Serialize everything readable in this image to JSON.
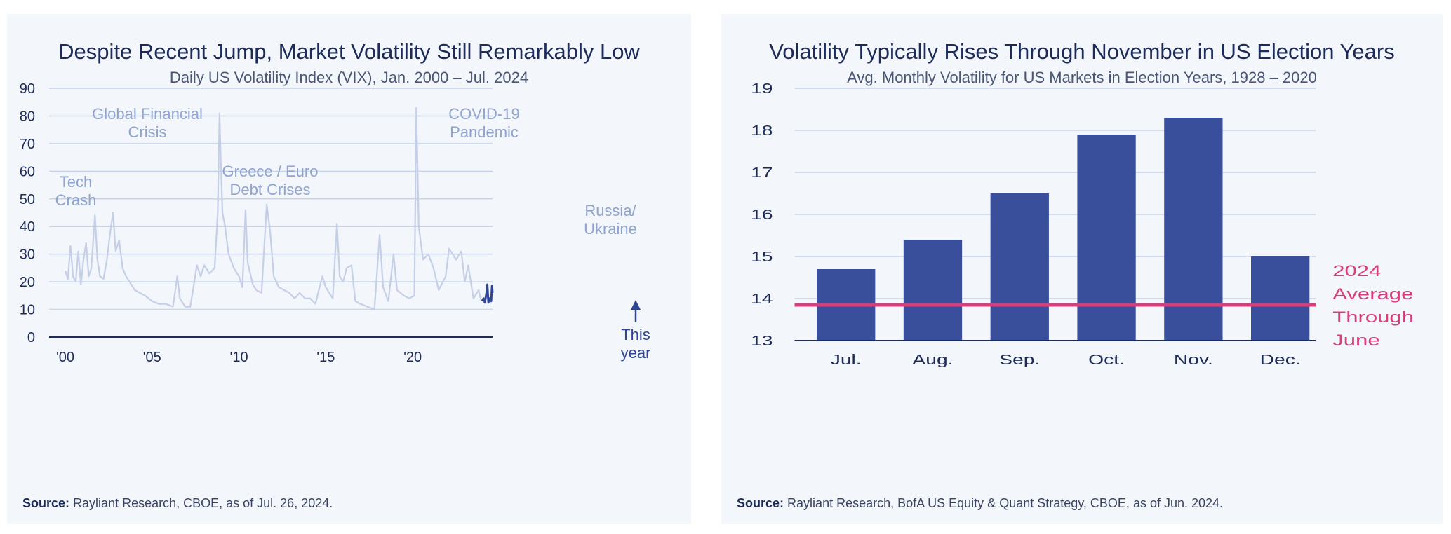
{
  "left": {
    "title": "Despite Recent Jump, Market Volatility Still Remarkably Low",
    "subtitle": "Daily US Volatility Index (VIX), Jan. 2000 – Jul. 2024",
    "source_label": "Source:",
    "source_text": "Rayliant Research, CBOE, as of Jul. 26, 2024.",
    "colors": {
      "history": "#c5d0e8",
      "recent": "#2e4596",
      "grid": "#c7d4ea",
      "axis": "#1c2b5a"
    },
    "chart_data": {
      "type": "line",
      "ylim": [
        0,
        90
      ],
      "yticks": [
        0,
        10,
        20,
        30,
        40,
        50,
        60,
        70,
        80,
        90
      ],
      "xlim": [
        2000,
        2024.6
      ],
      "xticks": [
        {
          "value": 2000,
          "label": "'00"
        },
        {
          "value": 2005,
          "label": "'05"
        },
        {
          "value": 2010,
          "label": "'10"
        },
        {
          "value": 2015,
          "label": "'15"
        },
        {
          "value": 2020,
          "label": "'20"
        }
      ],
      "series": [
        {
          "points": [
            [
              2000,
              24
            ],
            [
              2000.15,
              21
            ],
            [
              2000.3,
              33
            ],
            [
              2000.45,
              22
            ],
            [
              2000.6,
              20
            ],
            [
              2000.75,
              31
            ],
            [
              2000.9,
              19
            ],
            [
              2001.05,
              28
            ],
            [
              2001.2,
              34
            ],
            [
              2001.35,
              22
            ],
            [
              2001.5,
              25
            ],
            [
              2001.71,
              44
            ],
            [
              2001.85,
              28
            ],
            [
              2002.0,
              22
            ],
            [
              2002.2,
              21
            ],
            [
              2002.4,
              28
            ],
            [
              2002.55,
              36
            ],
            [
              2002.75,
              45
            ],
            [
              2002.9,
              31
            ],
            [
              2003.1,
              35
            ],
            [
              2003.3,
              25
            ],
            [
              2003.5,
              22
            ],
            [
              2003.7,
              20
            ],
            [
              2004.0,
              17
            ],
            [
              2004.3,
              16
            ],
            [
              2004.6,
              15
            ],
            [
              2005.0,
              13
            ],
            [
              2005.4,
              12
            ],
            [
              2005.8,
              12
            ],
            [
              2006.2,
              11
            ],
            [
              2006.45,
              22
            ],
            [
              2006.6,
              14
            ],
            [
              2006.9,
              11
            ],
            [
              2007.2,
              11
            ],
            [
              2007.58,
              26
            ],
            [
              2007.8,
              22
            ],
            [
              2008.0,
              26
            ],
            [
              2008.3,
              23
            ],
            [
              2008.6,
              25
            ],
            [
              2008.78,
              45
            ],
            [
              2008.88,
              81
            ],
            [
              2008.95,
              65
            ],
            [
              2009.05,
              45
            ],
            [
              2009.2,
              40
            ],
            [
              2009.4,
              30
            ],
            [
              2009.7,
              25
            ],
            [
              2010.0,
              22
            ],
            [
              2010.2,
              18
            ],
            [
              2010.38,
              46
            ],
            [
              2010.5,
              27
            ],
            [
              2010.8,
              19
            ],
            [
              2011.0,
              17
            ],
            [
              2011.3,
              16
            ],
            [
              2011.6,
              48
            ],
            [
              2011.8,
              38
            ],
            [
              2012.0,
              22
            ],
            [
              2012.3,
              18
            ],
            [
              2012.6,
              17
            ],
            [
              2012.9,
              16
            ],
            [
              2013.2,
              14
            ],
            [
              2013.5,
              16
            ],
            [
              2013.8,
              14
            ],
            [
              2014.1,
              14
            ],
            [
              2014.4,
              12
            ],
            [
              2014.8,
              22
            ],
            [
              2015.0,
              18
            ],
            [
              2015.4,
              14
            ],
            [
              2015.64,
              41
            ],
            [
              2015.8,
              22
            ],
            [
              2016.0,
              20
            ],
            [
              2016.2,
              25
            ],
            [
              2016.48,
              26
            ],
            [
              2016.7,
              13
            ],
            [
              2017.0,
              12
            ],
            [
              2017.4,
              11
            ],
            [
              2017.8,
              10
            ],
            [
              2018.1,
              37
            ],
            [
              2018.3,
              18
            ],
            [
              2018.6,
              13
            ],
            [
              2018.9,
              30
            ],
            [
              2019.1,
              17
            ],
            [
              2019.5,
              15
            ],
            [
              2019.8,
              14
            ],
            [
              2020.1,
              15
            ],
            [
              2020.21,
              83
            ],
            [
              2020.35,
              40
            ],
            [
              2020.6,
              28
            ],
            [
              2020.9,
              30
            ],
            [
              2021.2,
              25
            ],
            [
              2021.5,
              17
            ],
            [
              2021.9,
              22
            ],
            [
              2022.1,
              32
            ],
            [
              2022.3,
              30
            ],
            [
              2022.5,
              28
            ],
            [
              2022.8,
              31
            ],
            [
              2023.0,
              20
            ],
            [
              2023.2,
              26
            ],
            [
              2023.5,
              14
            ],
            [
              2023.8,
              17
            ],
            [
              2023.95,
              13
            ]
          ]
        },
        {
          "name": "This year",
          "points": [
            [
              2024.0,
              13
            ],
            [
              2024.08,
              14
            ],
            [
              2024.16,
              12.5
            ],
            [
              2024.25,
              16
            ],
            [
              2024.3,
              19
            ],
            [
              2024.36,
              12.5
            ],
            [
              2024.44,
              14
            ],
            [
              2024.52,
              13
            ],
            [
              2024.57,
              18.5
            ],
            [
              2024.6,
              16
            ]
          ]
        }
      ],
      "annotations": [
        {
          "lines": [
            "Tech",
            "Crash"
          ]
        },
        {
          "lines": [
            "Global Financial",
            "Crisis"
          ]
        },
        {
          "lines": [
            "Greece / Euro",
            "Debt Crises"
          ]
        },
        {
          "lines": [
            "COVID-19",
            "Pandemic"
          ]
        },
        {
          "lines": [
            "Russia/",
            "Ukraine"
          ]
        },
        {
          "lines": [
            "This",
            "year"
          ]
        }
      ]
    }
  },
  "right": {
    "title": "Volatility Typically Rises Through November in US Election Years",
    "subtitle": "Avg. Monthly Volatility for US Markets in Election Years, 1928 – 2020",
    "source_label": "Source:",
    "source_text": "Rayliant Research, BofA US Equity & Quant Strategy, CBOE, as of Jun. 2024.",
    "colors": {
      "bar": "#3a4f9c",
      "reference": "#d63f7c",
      "grid": "#c7d4ea",
      "axis": "#1c2b5a"
    },
    "chart_data": {
      "type": "bar",
      "categories": [
        "Jul.",
        "Aug.",
        "Sep.",
        "Oct.",
        "Nov.",
        "Dec."
      ],
      "values": [
        14.7,
        15.4,
        16.5,
        17.9,
        18.3,
        15.0
      ],
      "ylim": [
        13,
        19
      ],
      "yticks": [
        13,
        14,
        15,
        16,
        17,
        18,
        19
      ],
      "reference_line": {
        "value": 13.85,
        "label_lines": [
          "2024",
          "Average",
          "Through",
          "June"
        ]
      }
    }
  }
}
